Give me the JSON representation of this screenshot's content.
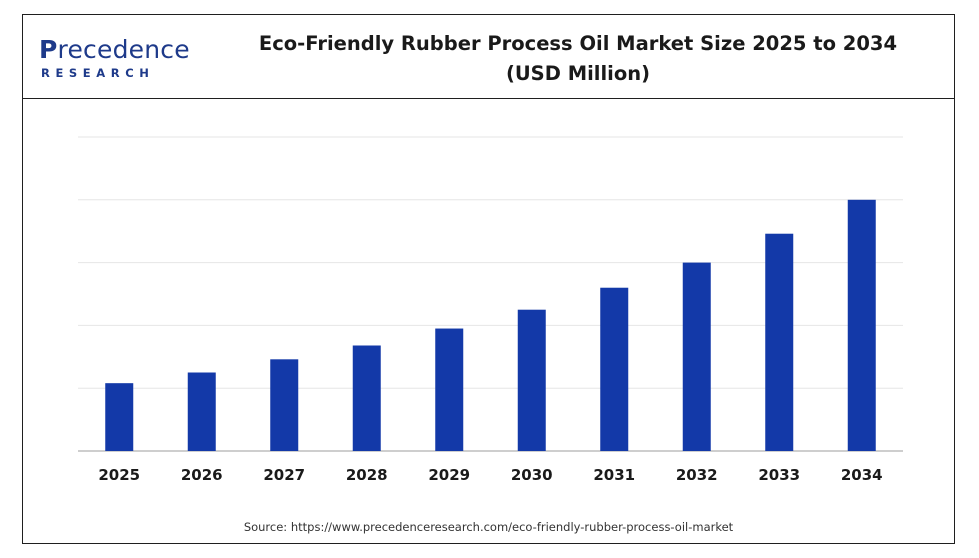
{
  "logo": {
    "first_letter": "P",
    "rest": "recedence",
    "sub": "RESEARCH"
  },
  "title_line1": "Eco-Friendly Rubber Process Oil Market Size 2025 to 2034",
  "title_line2": "(USD Million)",
  "source": "Source: https://www.precedenceresearch.com/eco-friendly-rubber-process-oil-market",
  "colors": {
    "bar": "#1339a8",
    "grid": "#e6e6e6",
    "axis": "#bdbdbd",
    "text": "#1a1a1a"
  },
  "chart_data": {
    "type": "bar",
    "title": "Eco-Friendly Rubber Process Oil Market Size 2025 to 2034 (USD Million)",
    "categories": [
      "2025",
      "2026",
      "2027",
      "2028",
      "2029",
      "2030",
      "2031",
      "2032",
      "2033",
      "2034"
    ],
    "series": [
      {
        "values": [
          108,
          125,
          146,
          168,
          195,
          225,
          260,
          300,
          346,
          400
        ]
      }
    ],
    "ylim": [
      0,
      500
    ],
    "grid": true,
    "xlabel": "",
    "ylabel": ""
  }
}
